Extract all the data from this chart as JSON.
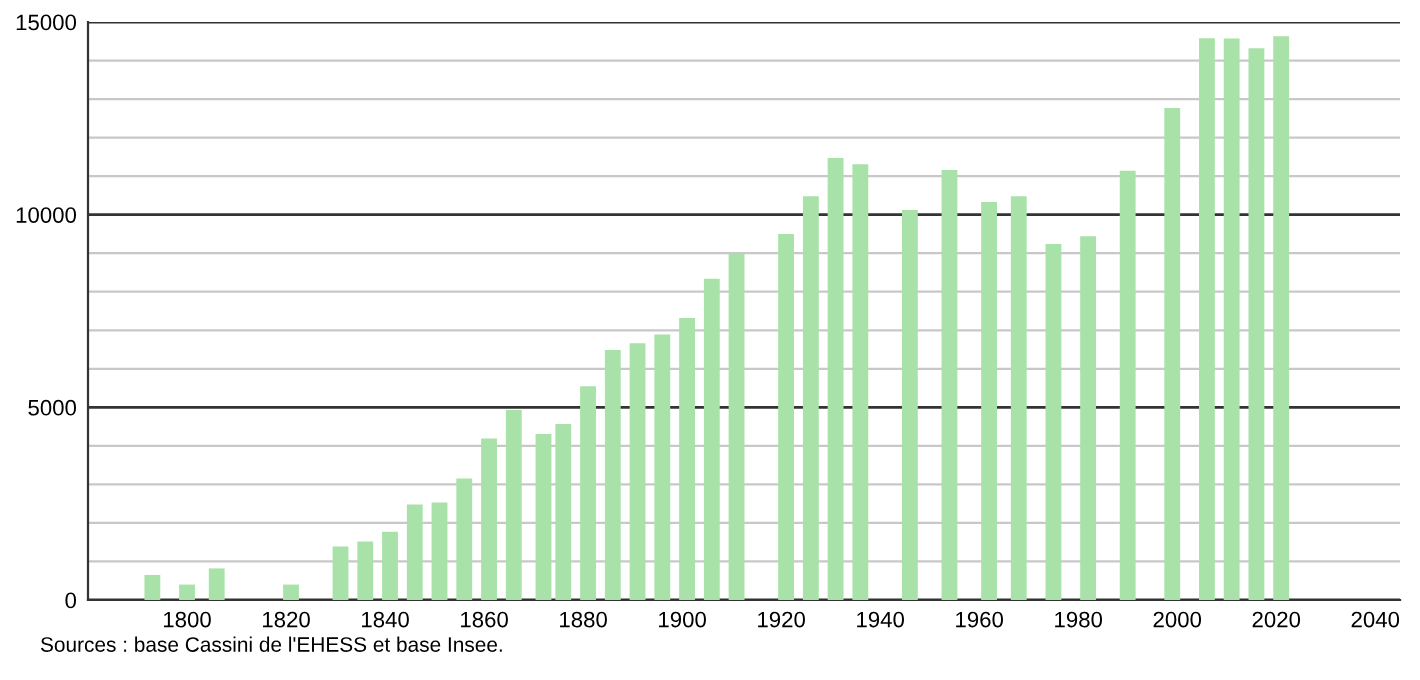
{
  "chart_data": {
    "type": "bar",
    "x": [
      1793,
      1800,
      1806,
      1821,
      1831,
      1836,
      1841,
      1846,
      1851,
      1856,
      1861,
      1866,
      1872,
      1876,
      1881,
      1886,
      1891,
      1896,
      1901,
      1906,
      1911,
      1921,
      1926,
      1931,
      1936,
      1946,
      1954,
      1962,
      1968,
      1975,
      1982,
      1990,
      1999,
      2006,
      2011,
      2016,
      2021
    ],
    "values": [
      650,
      400,
      820,
      400,
      1390,
      1520,
      1770,
      2480,
      2530,
      3150,
      4190,
      4930,
      4310,
      4570,
      5550,
      6490,
      6660,
      6890,
      7320,
      8340,
      8990,
      9500,
      10480,
      11470,
      11310,
      10120,
      11160,
      10330,
      10480,
      9240,
      9440,
      11140,
      12770,
      14580,
      14570,
      14320,
      14630
    ],
    "color": "#a8e2a8",
    "xlim": [
      1780,
      2045
    ],
    "xticks": [
      1800,
      1820,
      1840,
      1860,
      1880,
      1900,
      1920,
      1940,
      1960,
      1980,
      2000,
      2020,
      2040
    ],
    "ylim": [
      0,
      15000
    ],
    "yticks": [
      0,
      {
        "value": 1000,
        "label": null
      },
      {
        "value": 2000,
        "label": null
      },
      {
        "value": 3000,
        "label": null
      },
      {
        "value": 4000,
        "label": null
      },
      5000,
      {
        "value": 6000,
        "label": null
      },
      {
        "value": 7000,
        "label": null
      },
      {
        "value": 8000,
        "label": null
      },
      {
        "value": 9000,
        "label": null
      },
      10000,
      {
        "value": 11000,
        "label": null
      },
      {
        "value": 12000,
        "label": null
      },
      {
        "value": 13000,
        "label": null
      },
      {
        "value": 14000,
        "label": null
      },
      15000
    ],
    "grid": "y",
    "annotations": [
      "Sources : base Cassini de l'EHESS et base Insee."
    ]
  }
}
